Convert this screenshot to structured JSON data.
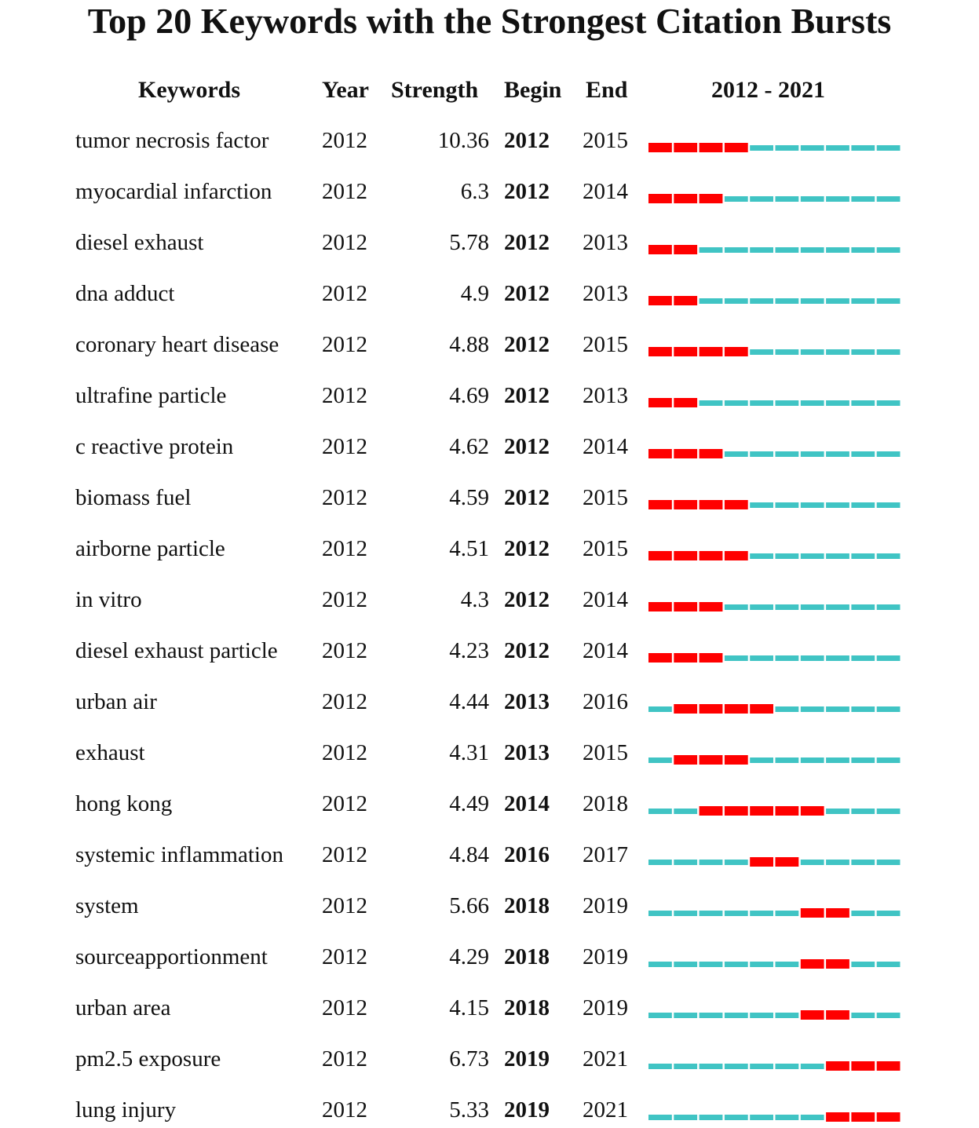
{
  "title": "Top 20 Keywords with the Strongest Citation Bursts",
  "table": {
    "header": [
      "Keywords",
      "Year",
      "Strength",
      "Begin",
      "End",
      "2012 - 2021"
    ],
    "rows": [
      [
        "tumor necrosis factor",
        2012,
        10.36,
        2012,
        2015
      ],
      [
        "myocardial infarction",
        2012,
        6.3,
        2012,
        2014
      ],
      [
        "diesel exhaust",
        2012,
        5.78,
        2012,
        2013
      ],
      [
        "dna adduct",
        2012,
        4.9,
        2012,
        2013
      ],
      [
        "coronary heart disease",
        2012,
        4.88,
        2012,
        2015
      ],
      [
        "ultrafine particle",
        2012,
        4.69,
        2012,
        2013
      ],
      [
        "c reactive protein",
        2012,
        4.62,
        2012,
        2014
      ],
      [
        "biomass fuel",
        2012,
        4.59,
        2012,
        2015
      ],
      [
        "airborne particle",
        2012,
        4.51,
        2012,
        2015
      ],
      [
        "in vitro",
        2012,
        4.3,
        2012,
        2014
      ],
      [
        "diesel exhaust particle",
        2012,
        4.23,
        2012,
        2014
      ],
      [
        "urban air",
        2012,
        4.44,
        2013,
        2016
      ],
      [
        "exhaust",
        2012,
        4.31,
        2013,
        2015
      ],
      [
        "hong kong",
        2012,
        4.49,
        2014,
        2018
      ],
      [
        "systemic inflammation",
        2012,
        4.84,
        2016,
        2017
      ],
      [
        "system",
        2012,
        5.66,
        2018,
        2019
      ],
      [
        "sourceapportionment",
        2012,
        4.29,
        2018,
        2019
      ],
      [
        "urban area",
        2012,
        4.15,
        2018,
        2019
      ],
      [
        "pm2.5 exposure",
        2012,
        6.73,
        2019,
        2021
      ],
      [
        "lung injury",
        2012,
        5.33,
        2019,
        2021
      ]
    ]
  },
  "timeline": {
    "range": [
      2012,
      2021
    ],
    "burst_color": "#ff0000",
    "base_color": "#40c4c4"
  }
}
